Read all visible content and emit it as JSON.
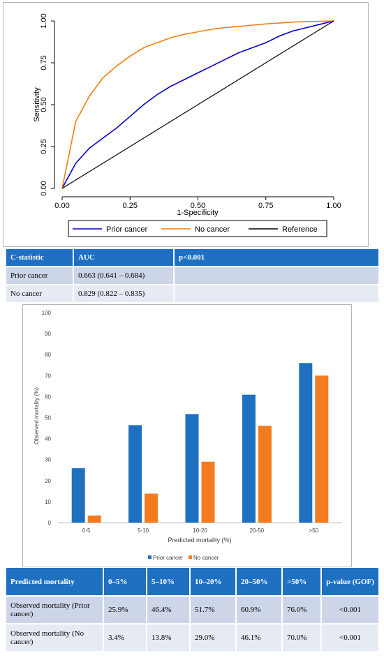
{
  "roc": {
    "ylabel": "Sensitivity",
    "xlabel": "1-Specificity",
    "x_ticks": [
      "0.00",
      "0.25",
      "0.50",
      "0.75",
      "1.00"
    ],
    "y_ticks": [
      "0.00",
      "0.25",
      "0.50",
      "0.75",
      "1.00"
    ],
    "legend": [
      "Prior cancer",
      "No cancer",
      "Reference"
    ]
  },
  "cstat_table": {
    "headers": [
      "C-statistic",
      "AUC",
      "p<0.001"
    ],
    "rows": [
      [
        "Prior cancer",
        "0.663 (0.641 – 0.684)",
        ""
      ],
      [
        "No cancer",
        "0.829 (0.822 – 0.835)",
        ""
      ]
    ]
  },
  "bar": {
    "ylabel": "Observed  mortality (%)",
    "xlabel": "Predicted mortality (%)",
    "y_ticks": [
      "0",
      "10",
      "20",
      "30",
      "40",
      "50",
      "60",
      "70",
      "80",
      "90",
      "100"
    ],
    "categories": [
      "0-5",
      "5-10",
      "10-20",
      "20-50",
      ">50"
    ],
    "legend": [
      "Prior cancer",
      "No cancer"
    ]
  },
  "mortality_table": {
    "headers": [
      "Predicted mortality",
      "0–5%",
      "5–10%",
      "10–20%",
      "20–50%",
      ">50%",
      "p-value (GOF)"
    ],
    "rows": [
      [
        "Observed mortality (Prior cancer)",
        "25.9%",
        "46.4%",
        "51.7%",
        "60.9%",
        "76.0%",
        "<0.001"
      ],
      [
        "Observed mortality (No cancer)",
        "3.4%",
        "13.8%",
        "29.0%",
        "46.1%",
        "70.0%",
        "<0.001"
      ]
    ]
  },
  "colors": {
    "prior_cancer_line": "#0000cc",
    "no_cancer_line": "#f07f09",
    "reference_line": "#000000",
    "prior_cancer_bar": "#1f70c1",
    "no_cancer_bar": "#f47b20",
    "table_header": "#1f70c1"
  },
  "chart_data": [
    {
      "type": "line",
      "xlabel": "1-Specificity",
      "ylabel": "Sensitivity",
      "xlim": [
        0,
        1
      ],
      "ylim": [
        0,
        1
      ],
      "grid": false,
      "legend_position": "bottom",
      "series": [
        {
          "name": "Prior cancer",
          "x": [
            0,
            0.05,
            0.1,
            0.15,
            0.2,
            0.25,
            0.3,
            0.35,
            0.4,
            0.45,
            0.5,
            0.55,
            0.6,
            0.65,
            0.7,
            0.75,
            0.8,
            0.85,
            0.9,
            0.95,
            1
          ],
          "y": [
            0,
            0.15,
            0.24,
            0.3,
            0.36,
            0.43,
            0.5,
            0.56,
            0.61,
            0.65,
            0.69,
            0.73,
            0.77,
            0.81,
            0.84,
            0.87,
            0.91,
            0.94,
            0.96,
            0.98,
            1
          ]
        },
        {
          "name": "No cancer",
          "x": [
            0,
            0.05,
            0.1,
            0.15,
            0.2,
            0.25,
            0.3,
            0.35,
            0.4,
            0.45,
            0.5,
            0.55,
            0.6,
            0.65,
            0.7,
            0.75,
            0.8,
            0.85,
            0.9,
            0.95,
            1
          ],
          "y": [
            0,
            0.4,
            0.55,
            0.66,
            0.73,
            0.79,
            0.84,
            0.87,
            0.9,
            0.92,
            0.935,
            0.95,
            0.96,
            0.967,
            0.975,
            0.982,
            0.988,
            0.993,
            0.996,
            0.998,
            1
          ]
        },
        {
          "name": "Reference",
          "x": [
            0,
            1
          ],
          "y": [
            0,
            1
          ]
        }
      ]
    },
    {
      "type": "bar",
      "xlabel": "Predicted mortality (%)",
      "ylabel": "Observed  mortality (%)",
      "categories": [
        "0-5",
        "5-10",
        "10-20",
        "20-50",
        ">50"
      ],
      "ylim": [
        0,
        100
      ],
      "grid": false,
      "legend_position": "bottom",
      "series": [
        {
          "name": "Prior cancer",
          "values": [
            25.9,
            46.4,
            51.7,
            60.9,
            76.0
          ]
        },
        {
          "name": "No cancer",
          "values": [
            3.4,
            13.8,
            29.0,
            46.1,
            70.0
          ]
        }
      ]
    }
  ]
}
